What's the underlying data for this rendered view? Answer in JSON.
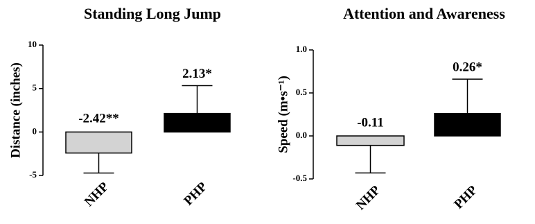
{
  "chart_data": [
    {
      "type": "bar",
      "title": "Standing Long Jump",
      "y_label": "Distance (inches)",
      "categories": [
        "NHP",
        "PHP"
      ],
      "values": [
        -2.42,
        2.13
      ],
      "errors": [
        2.3,
        3.2
      ],
      "value_labels": [
        "-2.42**",
        "2.13*"
      ],
      "colors": [
        "#d3d3d3",
        "#000000"
      ],
      "ylim": [
        -5,
        10
      ],
      "yticks": [
        -5,
        0,
        5,
        10
      ]
    },
    {
      "type": "bar",
      "title": "Attention and Awareness",
      "y_label": "Speed (m•s⁻¹)",
      "categories": [
        "NHP",
        "PHP"
      ],
      "values": [
        -0.11,
        0.26
      ],
      "errors": [
        0.32,
        0.4
      ],
      "value_labels": [
        "-0.11",
        "0.26*"
      ],
      "colors": [
        "#d3d3d3",
        "#000000"
      ],
      "ylim": [
        -0.5,
        1.0
      ],
      "yticks": [
        -0.5,
        {
          "value": 0,
          "label": "0.0"
        },
        0.5,
        {
          "value": 1,
          "label": "1.0"
        }
      ]
    }
  ]
}
